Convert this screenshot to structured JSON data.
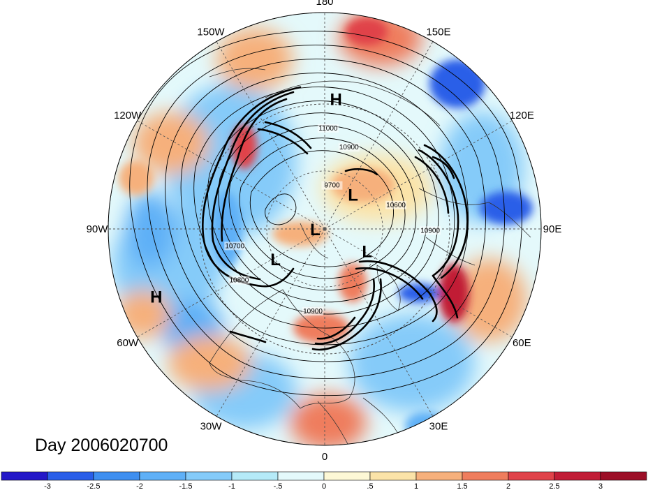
{
  "title": "Day 2006020700",
  "longitude_labels": [
    {
      "id": "90e",
      "text": "90E",
      "lon": 90
    },
    {
      "id": "60e",
      "text": "60E",
      "lon": 60
    },
    {
      "id": "30e",
      "text": "30E",
      "lon": 30
    },
    {
      "id": "0",
      "text": "0",
      "lon": 0
    },
    {
      "id": "30w",
      "text": "30W",
      "lon": -30
    },
    {
      "id": "60w",
      "text": "60W",
      "lon": -60
    },
    {
      "id": "90w",
      "text": "90W",
      "lon": -90
    },
    {
      "id": "120w",
      "text": "120W",
      "lon": -120
    },
    {
      "id": "150w",
      "text": "150W",
      "lon": -150
    },
    {
      "id": "180",
      "text": "180",
      "lon": 180
    },
    {
      "id": "150e",
      "text": "150E",
      "lon": 150
    },
    {
      "id": "120e",
      "text": "120E",
      "lon": 120
    }
  ],
  "pressure_centers": [
    {
      "id": "h-pacific",
      "type": "H",
      "lon": 175,
      "lat": 28
    },
    {
      "id": "h-atlantic",
      "type": "H",
      "lon": -68,
      "lat": 10
    },
    {
      "id": "l-siberia",
      "type": "L",
      "lon": 62,
      "lat": 65
    },
    {
      "id": "l-arctic",
      "type": "L",
      "lon": 140,
      "lat": 67
    },
    {
      "id": "l-pole",
      "type": "L",
      "lon": -85,
      "lat": 85
    },
    {
      "id": "l-canada",
      "type": "L",
      "lon": -58,
      "lat": 60
    }
  ],
  "contour_labels": [
    {
      "text": "10900",
      "lon": 88,
      "lat": 38
    },
    {
      "text": "10600",
      "lon": 107,
      "lat": 52
    },
    {
      "text": "11000",
      "lon": 178,
      "lat": 41
    },
    {
      "text": "10900",
      "lon": 163,
      "lat": 48
    },
    {
      "text": "9700",
      "lon": 170,
      "lat": 68
    },
    {
      "text": "10900",
      "lon": -8,
      "lat": 47
    },
    {
      "text": "10800",
      "lon": -58,
      "lat": 40
    },
    {
      "text": "10700",
      "lon": -78,
      "lat": 44
    }
  ],
  "colorbar": {
    "tick_labels": [
      "-3",
      "-2.5",
      "-2",
      "-1.5",
      "-1",
      "-.5",
      "0",
      ".5",
      "1",
      "1.5",
      "2",
      "2.5",
      "3"
    ],
    "colors": [
      "#2418c8",
      "#2a5ee8",
      "#3f8ff0",
      "#5fb0f7",
      "#85cbf9",
      "#b5eaf8",
      "#e4f9fb",
      "#fdf8d6",
      "#fbe3a8",
      "#f6b07c",
      "#ef7d5d",
      "#e0434a",
      "#c11d36",
      "#9c0f27"
    ]
  }
}
